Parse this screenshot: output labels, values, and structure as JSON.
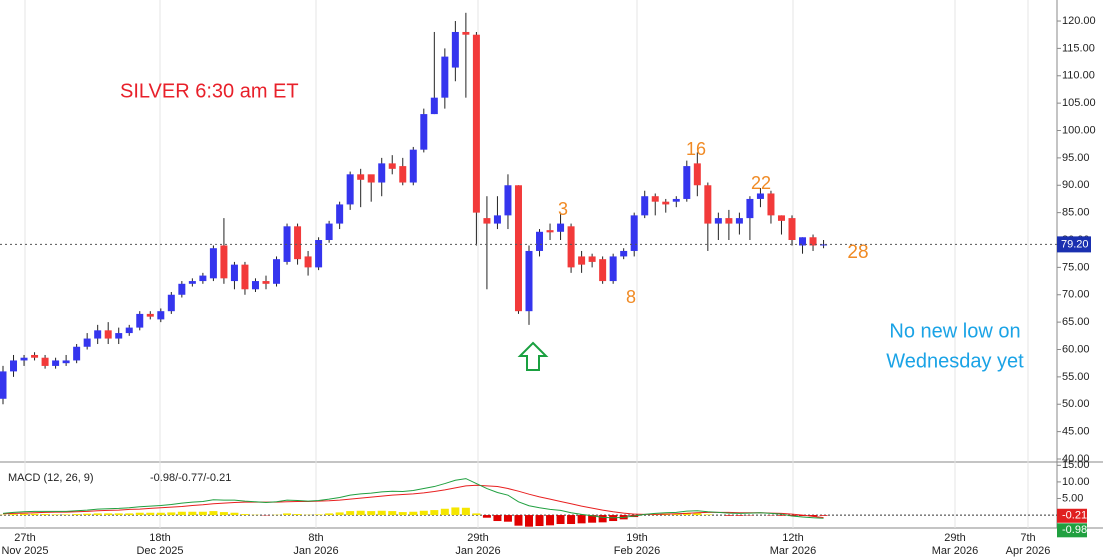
{
  "chart_data": [
    {
      "type": "candlestick",
      "annotations": [
        {
          "text": "SILVER 6:30 am ET",
          "color": "#e8202a"
        },
        {
          "text": "3",
          "color": "#f08a24"
        },
        {
          "text": "8",
          "color": "#f08a24"
        },
        {
          "text": "16",
          "color": "#f08a24"
        },
        {
          "text": "22",
          "color": "#f08a24"
        },
        {
          "text": "28",
          "color": "#f08a24"
        },
        {
          "text": "No new low on",
          "color": "#1aa3e6"
        },
        {
          "text": "Wednesday yet",
          "color": "#1aa3e6"
        }
      ],
      "x_labels": [
        {
          "day": "27th",
          "month": "Nov 2025"
        },
        {
          "day": "18th",
          "month": "Dec 2025"
        },
        {
          "day": "8th",
          "month": "Jan 2026"
        },
        {
          "day": "29th",
          "month": "Jan 2026"
        },
        {
          "day": "19th",
          "month": "Feb 2026"
        },
        {
          "day": "12th",
          "month": "Mar 2026"
        },
        {
          "day": "29th",
          "month": "Mar 2026"
        },
        {
          "day": "7th",
          "month": "Apr 2026"
        }
      ],
      "up_color": "#3535ee",
      "down_color": "#f23a3a",
      "open": [
        51,
        56,
        58,
        59,
        58.5,
        57,
        57.5,
        58,
        60.5,
        62,
        63.5,
        62,
        63,
        64,
        66.5,
        65.5,
        67,
        70,
        72,
        72.5,
        73,
        79,
        72.5,
        75.5,
        71,
        72.5,
        72,
        76,
        82.5,
        77,
        75,
        80,
        83,
        86.5,
        92,
        92,
        90.5,
        94,
        93.5,
        90.5,
        96.5,
        103,
        106,
        111.5,
        118,
        117.5,
        84,
        83,
        84.5,
        90,
        67,
        78,
        81.8,
        81.5,
        82.5,
        77,
        77,
        76.5,
        72.5,
        77,
        78,
        84.5,
        88,
        87,
        87,
        87.5,
        94,
        90,
        83,
        84,
        83,
        84,
        87.5,
        88.5,
        84.5,
        84,
        79,
        80.5,
        79
      ],
      "high": [
        57,
        59,
        59,
        59.5,
        59,
        58.5,
        59,
        61,
        63,
        64.5,
        65,
        64,
        64.5,
        67,
        67,
        67.5,
        70.5,
        72.5,
        73,
        74,
        79,
        84,
        76,
        76,
        73,
        73.5,
        77,
        83,
        83,
        78,
        80.5,
        83.5,
        87,
        92.5,
        93,
        91.5,
        95,
        95.5,
        95,
        97,
        104,
        118,
        115,
        120,
        121.5,
        118,
        88,
        88,
        92,
        90,
        79,
        82,
        83,
        85,
        83,
        78,
        77.5,
        77,
        77.5,
        78.5,
        85,
        89,
        88.5,
        87.5,
        88,
        94.5,
        96,
        90.5,
        85,
        85.5,
        85,
        88,
        89.5,
        89,
        84.5,
        84.5,
        80.5,
        81,
        80
      ],
      "low": [
        50,
        55,
        57,
        58,
        56.5,
        56.5,
        57,
        57.5,
        60,
        61,
        61,
        61,
        62.5,
        63.5,
        65.5,
        65,
        66.5,
        69.5,
        71.5,
        72,
        72.5,
        72,
        71,
        70,
        70.5,
        71,
        71.5,
        75.5,
        75.5,
        73.5,
        74.5,
        79.5,
        82,
        85.5,
        86,
        87,
        88,
        92,
        90,
        90,
        96,
        103,
        104,
        109,
        106,
        79,
        71,
        82,
        82,
        66.5,
        64.5,
        77,
        80,
        80,
        74,
        74,
        75,
        72,
        72,
        76.5,
        77,
        84,
        84.5,
        85,
        86,
        87,
        88,
        78,
        80,
        80,
        81,
        80,
        86,
        83,
        81,
        79,
        77.5,
        78,
        78.5
      ],
      "close": [
        56,
        58,
        58.5,
        58.5,
        57,
        58,
        58,
        60.5,
        62,
        63.5,
        62,
        63,
        64,
        66.5,
        66,
        67,
        70,
        72,
        72.5,
        73.5,
        78.5,
        73,
        75.5,
        71,
        72.5,
        72,
        76.5,
        82.5,
        76.5,
        75,
        80,
        83,
        86.5,
        92,
        91,
        90.5,
        94,
        93,
        90.5,
        96.5,
        103,
        106,
        113.5,
        118,
        117.5,
        85,
        83,
        84.5,
        90,
        67,
        78,
        81.5,
        81.4,
        83,
        75,
        75.5,
        76,
        72.5,
        77,
        78,
        84.5,
        88,
        87,
        86.5,
        87.5,
        93.5,
        90,
        83,
        84,
        83,
        84,
        87.5,
        88.5,
        84.5,
        83.5,
        80,
        80.5,
        79,
        79.2
      ],
      "last_price": {
        "value": 79.2,
        "label": "79.20"
      },
      "ylim": [
        39.45,
        123.84
      ],
      "yticks": [
        {
          "value": 120,
          "label": "120.00"
        },
        {
          "value": 115,
          "label": "115.00"
        },
        {
          "value": 110,
          "label": "110.00"
        },
        {
          "value": 105,
          "label": "105.00"
        },
        {
          "value": 100,
          "label": "100.00"
        },
        {
          "value": 95,
          "label": "95.00"
        },
        {
          "value": 90,
          "label": "90.00"
        },
        {
          "value": 85,
          "label": "85.00"
        },
        {
          "value": 80,
          "label": "80.00"
        },
        {
          "value": 75,
          "label": "75.00"
        },
        {
          "value": 70,
          "label": "70.00"
        },
        {
          "value": 65,
          "label": "65.00"
        },
        {
          "value": 60,
          "label": "60.00"
        },
        {
          "value": 55,
          "label": "55.00"
        },
        {
          "value": 50,
          "label": "50.00"
        },
        {
          "value": 45,
          "label": "45.00"
        },
        {
          "value": 40,
          "label": "40.00"
        }
      ]
    },
    {
      "type": "macd",
      "title": "MACD (12, 26, 9)",
      "values_text": "-0.98/-0.77/-0.21",
      "macd": {
        "color": "#20a040",
        "values": [
          0.5,
          0.8,
          1.0,
          1.1,
          1.1,
          1.1,
          1.1,
          1.3,
          1.5,
          1.8,
          1.9,
          2.0,
          2.2,
          2.5,
          2.7,
          2.9,
          3.2,
          3.6,
          3.9,
          4.1,
          4.6,
          4.5,
          4.5,
          4.2,
          4.0,
          3.8,
          4.0,
          4.5,
          4.4,
          4.2,
          4.4,
          4.8,
          5.3,
          6.0,
          6.4,
          6.6,
          7.0,
          7.2,
          7.1,
          7.4,
          8.0,
          8.6,
          9.5,
          10.5,
          11.0,
          9.5,
          8.0,
          6.8,
          6.0,
          4.0,
          2.8,
          2.2,
          1.7,
          1.4,
          0.7,
          0.2,
          -0.2,
          -0.7,
          -0.8,
          -0.7,
          -0.3,
          0.2,
          0.5,
          0.7,
          0.8,
          1.2,
          1.3,
          1.0,
          0.8,
          0.6,
          0.5,
          0.6,
          0.7,
          0.5,
          0.3,
          -0.3,
          -0.6,
          -0.8,
          -0.98
        ]
      },
      "signal": {
        "color": "#e82020",
        "values": [
          0.4,
          0.5,
          0.6,
          0.7,
          0.8,
          0.9,
          0.9,
          1.0,
          1.1,
          1.3,
          1.4,
          1.5,
          1.7,
          1.8,
          2.0,
          2.2,
          2.4,
          2.6,
          2.9,
          3.1,
          3.4,
          3.6,
          3.8,
          3.9,
          3.9,
          3.9,
          3.9,
          4.0,
          4.1,
          4.1,
          4.2,
          4.3,
          4.5,
          4.8,
          5.1,
          5.4,
          5.7,
          6.0,
          6.2,
          6.4,
          6.7,
          7.1,
          7.6,
          8.2,
          8.8,
          9.0,
          8.8,
          8.6,
          8.0,
          7.2,
          6.3,
          5.5,
          4.8,
          4.1,
          3.4,
          2.7,
          2.1,
          1.5,
          1.0,
          0.6,
          0.3,
          0.2,
          0.2,
          0.3,
          0.4,
          0.5,
          0.7,
          0.8,
          0.8,
          0.8,
          0.7,
          0.7,
          0.7,
          0.6,
          0.5,
          0.3,
          0.0,
          -0.4,
          -0.77
        ]
      },
      "histogram": {
        "up_color": "#f5e600",
        "down_color": "#e00000",
        "values": [
          0.1,
          0.3,
          0.4,
          0.4,
          0.3,
          0.2,
          0.2,
          0.3,
          0.4,
          0.5,
          0.5,
          0.5,
          0.5,
          0.7,
          0.7,
          0.7,
          0.8,
          1.0,
          1.0,
          1.0,
          1.2,
          0.9,
          0.7,
          0.3,
          0.1,
          -0.1,
          0.1,
          0.5,
          0.3,
          0.1,
          0.2,
          0.5,
          0.8,
          1.2,
          1.3,
          1.2,
          1.3,
          1.2,
          0.9,
          1.0,
          1.3,
          1.5,
          1.9,
          2.3,
          2.2,
          0.5,
          -0.8,
          -1.8,
          -2.0,
          -3.2,
          -3.5,
          -3.3,
          -3.1,
          -2.7,
          -2.7,
          -2.5,
          -2.3,
          -2.2,
          -1.8,
          -1.3,
          -0.6,
          0.0,
          0.3,
          0.4,
          0.4,
          0.7,
          0.6,
          0.2,
          0.0,
          -0.2,
          -0.2,
          -0.1,
          0.0,
          -0.1,
          -0.2,
          -0.3,
          -0.3,
          -0.4,
          -0.21
        ]
      },
      "badges": [
        {
          "value": -0.21,
          "label": "-0.21",
          "color": "#e02020"
        },
        {
          "value": -0.98,
          "label": "-0.98",
          "color": "#20a040"
        }
      ],
      "ylim": [
        -3.6,
        15.4
      ],
      "yticks": [
        {
          "value": 15,
          "label": "15.00"
        },
        {
          "value": 10,
          "label": "10.00"
        },
        {
          "value": 5,
          "label": "5.00"
        }
      ]
    }
  ]
}
